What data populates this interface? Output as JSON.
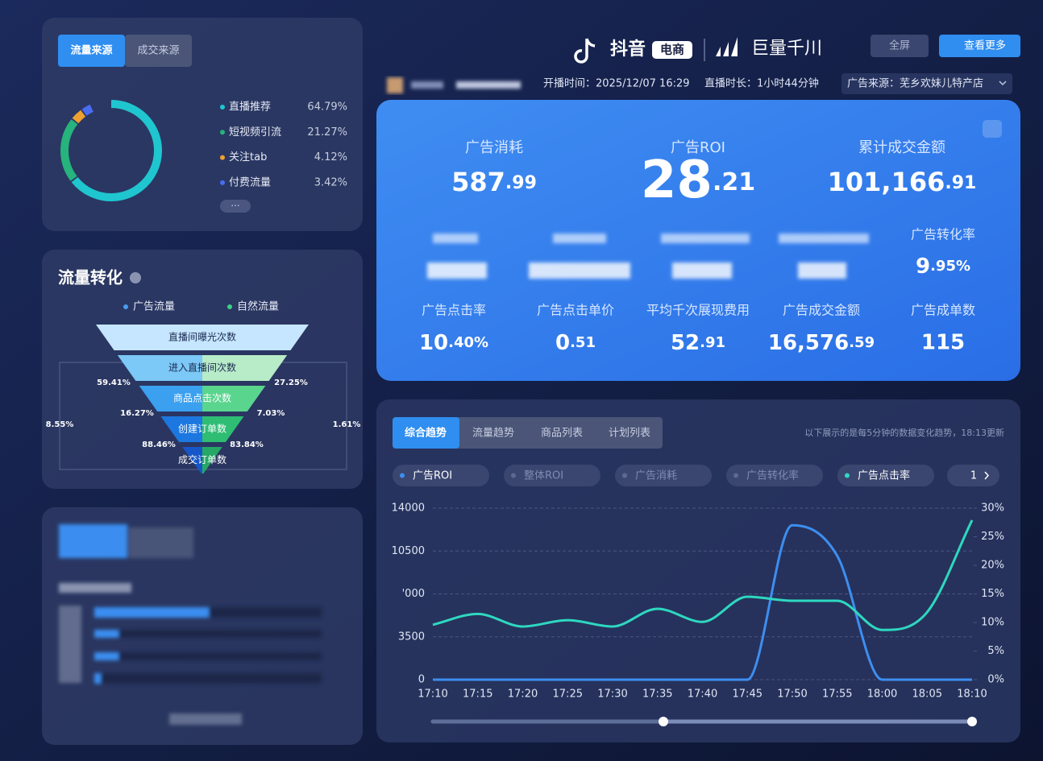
{
  "header": {
    "brand": "抖音",
    "badge": "电商",
    "partner": "巨量千川",
    "fullscreen": "全屏",
    "more": "查看更多",
    "start_time": "开播时间：2025/12/07 16:29",
    "duration": "直播时长：1小时44分钟",
    "ad_source": "广告来源：芜乡欢妹儿特产店"
  },
  "traffic_source": {
    "tabs": [
      "流量来源",
      "成交来源"
    ],
    "type": "pie",
    "categories": [
      "直播推荐",
      "短视频引流",
      "关注tab",
      "付费流量"
    ],
    "values": [
      64.79,
      21.27,
      4.12,
      3.42
    ],
    "value_labels": [
      "64.79%",
      "21.27%",
      "4.12%",
      "3.42%"
    ],
    "colors": [
      "#1fc6cf",
      "#27b37c",
      "#f0a030",
      "#4a6cf0"
    ]
  },
  "funnel": {
    "title": "流量转化",
    "legend": [
      "广告流量",
      "自然流量"
    ],
    "stages": [
      "直播间曝光次数",
      "进入直播间次数",
      "商品点击次数",
      "创建订单数",
      "成交订单数"
    ],
    "rates": [
      "59.41%",
      "27.25%",
      "16.27%",
      "7.03%",
      "88.46%",
      "83.84%",
      "8.55%",
      "1.61%"
    ]
  },
  "kpis": {
    "top": [
      {
        "label": "广告消耗",
        "value": "587.99"
      },
      {
        "label": "广告ROI",
        "value": "28.21"
      },
      {
        "label": "累计成交金额",
        "value": "101,166.91"
      }
    ],
    "conversion_rate": {
      "label": "广告转化率",
      "value": "9.95%"
    },
    "bottom": [
      {
        "label": "广告点击率",
        "value": "10.40%"
      },
      {
        "label": "广告点击单价",
        "value": "0.51"
      },
      {
        "label": "平均千次展现费用",
        "value": "52.91"
      },
      {
        "label": "广告成交金额",
        "value": "16,576.59"
      },
      {
        "label": "广告成单数",
        "value": "115"
      }
    ]
  },
  "trend": {
    "type": "line",
    "tabs": [
      "综合趋势",
      "流量趋势",
      "商品列表",
      "计划列表"
    ],
    "note": "以下展示的是每5分钟的数据变化趋势，18:13更新",
    "metrics": [
      "整体ROI",
      "广告消耗",
      "广告转化率"
    ],
    "page": "1",
    "x": [
      "17:10",
      "17:15",
      "17:20",
      "17:25",
      "17:30",
      "17:35",
      "17:40",
      "17:45",
      "17:50",
      "17:55",
      "18:00",
      "18:05",
      "18:10"
    ],
    "series": [
      {
        "name": "广告ROI",
        "color": "#3d8ef0",
        "values": [
          0,
          0,
          0,
          0,
          0,
          0,
          0,
          0,
          12600,
          10100,
          0,
          0,
          0
        ]
      },
      {
        "name": "广告点击率",
        "color": "#2ed8c0",
        "axis": "y2",
        "values": [
          9.6,
          11.5,
          9.3,
          10.4,
          9.3,
          12.4,
          10.1,
          14.5,
          13.8,
          13.8,
          8.7,
          11.8,
          27.9
        ]
      }
    ],
    "ylim": [
      0,
      14000
    ],
    "yticks": [
      0,
      3500,
      {
        "value": 7000,
        "label": "'000"
      },
      10500,
      14000
    ],
    "y2lim": [
      0,
      30
    ],
    "y2ticks": [
      {
        "value": 0,
        "label": "0%"
      },
      {
        "value": 5,
        "label": "5%"
      },
      {
        "value": 10,
        "label": "10%"
      },
      {
        "value": 15,
        "label": "15%"
      },
      {
        "value": 20,
        "label": "20%"
      },
      {
        "value": 25,
        "label": "25%"
      },
      {
        "value": 30,
        "label": "30%"
      }
    ],
    "grid": true
  }
}
